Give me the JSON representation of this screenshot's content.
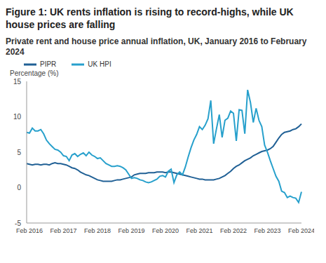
{
  "chart_data": {
    "type": "line",
    "title": "Figure 1: UK rents inflation is rising to record-highs, while UK house prices are falling",
    "subtitle": "Private rent and house price annual inflation, UK, January 2016 to February 2024",
    "y_label": "Percentage (%)",
    "categories": [
      null,
      "Feb 2016",
      null,
      null,
      null,
      null,
      null,
      null,
      null,
      null,
      null,
      null,
      null,
      "Feb 2017",
      null,
      null,
      null,
      null,
      null,
      null,
      null,
      null,
      null,
      null,
      null,
      "Feb 2018",
      null,
      null,
      null,
      null,
      null,
      null,
      null,
      null,
      null,
      null,
      null,
      "Feb 2019",
      null,
      null,
      null,
      null,
      null,
      null,
      null,
      null,
      null,
      null,
      null,
      "Feb 2020",
      null,
      null,
      null,
      null,
      null,
      null,
      null,
      null,
      null,
      null,
      null,
      "Feb 2021",
      null,
      null,
      null,
      null,
      null,
      null,
      null,
      null,
      null,
      null,
      null,
      "Feb 2022",
      null,
      null,
      null,
      null,
      null,
      null,
      null,
      null,
      null,
      null,
      null,
      "Feb 2023",
      null,
      null,
      null,
      null,
      null,
      null,
      null,
      null,
      null,
      null,
      null,
      "Feb 2024"
    ],
    "series": [
      {
        "name": "PIPR",
        "color": "#206095",
        "values": [
          3.4,
          3.3,
          3.2,
          3.3,
          3.3,
          3.2,
          3.3,
          3.3,
          3.2,
          3.4,
          3.5,
          3.4,
          3.4,
          3.3,
          3.2,
          3.0,
          2.8,
          2.7,
          2.5,
          2.2,
          2.0,
          1.8,
          1.7,
          1.5,
          1.3,
          1.1,
          1.0,
          0.9,
          0.9,
          0.9,
          0.9,
          1.0,
          1.1,
          1.1,
          1.2,
          1.3,
          1.4,
          1.5,
          1.8,
          1.9,
          2.0,
          2.0,
          2.0,
          2.1,
          2.1,
          2.1,
          2.2,
          2.2,
          2.2,
          2.1,
          2.2,
          2.2,
          2.1,
          2.0,
          1.9,
          1.8,
          1.7,
          1.6,
          1.5,
          1.4,
          1.3,
          1.2,
          1.2,
          1.1,
          1.1,
          1.1,
          1.1,
          1.2,
          1.3,
          1.5,
          1.7,
          2.0,
          2.3,
          2.7,
          3.0,
          3.2,
          3.5,
          3.8,
          4.0,
          4.2,
          4.5,
          4.7,
          4.9,
          5.1,
          5.2,
          5.3,
          5.5,
          5.8,
          6.4,
          7.0,
          7.5,
          7.8,
          7.9,
          8.0,
          8.2,
          8.3,
          8.6,
          9.0
        ]
      },
      {
        "name": "UK HPI",
        "color": "#27a0cc",
        "values": [
          7.8,
          7.7,
          8.4,
          8.0,
          8.0,
          8.2,
          7.6,
          6.7,
          6.2,
          5.8,
          5.4,
          5.3,
          5.0,
          4.5,
          4.4,
          3.8,
          4.6,
          4.8,
          4.4,
          4.7,
          4.9,
          4.5,
          5.0,
          4.6,
          4.4,
          4.1,
          4.2,
          3.8,
          3.4,
          3.2,
          3.0,
          3.0,
          3.1,
          3.0,
          2.8,
          2.5,
          1.9,
          1.3,
          1.4,
          1.3,
          1.1,
          1.0,
          0.8,
          0.7,
          0.8,
          1.0,
          1.2,
          1.6,
          1.7,
          1.5,
          2.3,
          2.6,
          0.7,
          1.8,
          2.2,
          1.8,
          2.9,
          4.3,
          5.6,
          6.7,
          7.5,
          8.6,
          8.2,
          8.8,
          9.7,
          12.3,
          6.2,
          8.3,
          10.3,
          7.1,
          9.5,
          9.8,
          10.8,
          10.5,
          6.6,
          11.0,
          10.9,
          7.6,
          13.8,
          12.0,
          9.2,
          11.2,
          9.5,
          8.6,
          6.0,
          5.0,
          3.8,
          2.7,
          1.6,
          0.9,
          -0.5,
          -0.7,
          -1.4,
          -1.2,
          -1.4,
          -1.5,
          -2.1,
          -0.6
        ]
      }
    ],
    "ylim": [
      -5,
      15
    ],
    "yticks": [
      -5,
      0,
      5,
      10,
      15
    ],
    "grid": false,
    "legend": "top"
  }
}
